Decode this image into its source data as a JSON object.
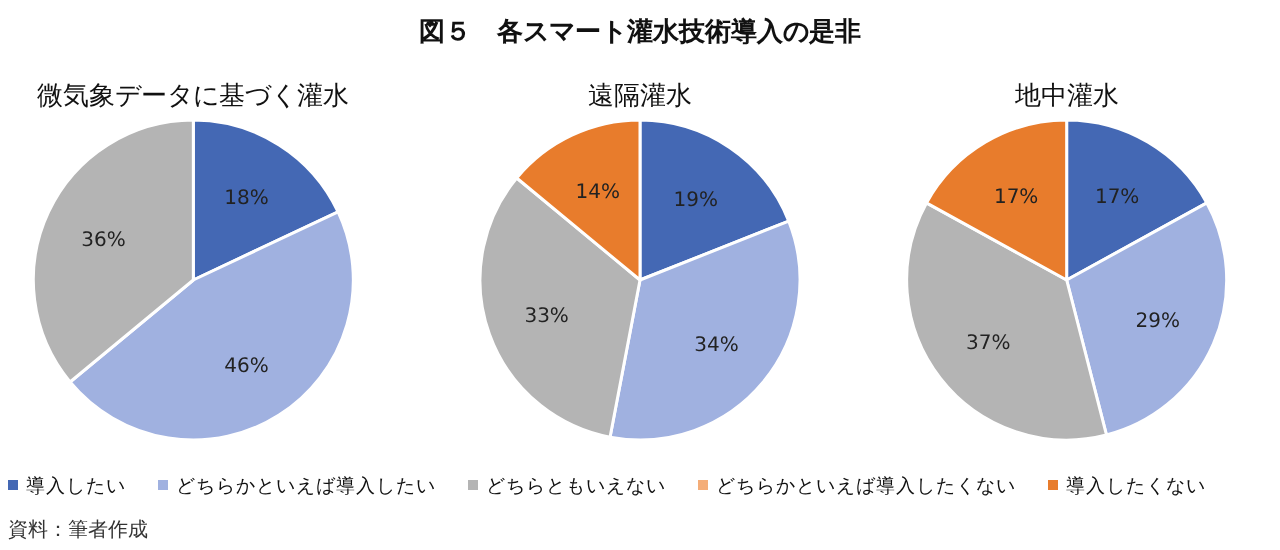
{
  "chart_data": [
    {
      "type": "pie",
      "title": "微気象データに基づく灌水",
      "annotations": [
        "図５　各スマート灌水技術導入の是非",
        "資料：筆者作成"
      ],
      "legend": "bottom",
      "categories": [
        "導入したい",
        "どちらかといえば導入したい",
        "どちらともいえない",
        "どちらかといえば導入したくない",
        "導入したくない"
      ],
      "values": [
        18,
        46,
        36,
        0,
        0
      ],
      "value_labels": [
        "18%",
        "46%",
        "36%",
        null,
        null
      ],
      "colors": [
        "#4468b4",
        "#a0b1e0",
        "#b4b4b4",
        "#f4ad78",
        "#e87c2c"
      ]
    },
    {
      "type": "pie",
      "title": "遠隔灌水",
      "categories": [
        null,
        null,
        null,
        null
      ],
      "values": [
        19,
        34,
        33,
        14
      ],
      "value_labels": [
        "19%",
        "34%",
        "33%",
        "14%"
      ],
      "colors": [
        "#4468b4",
        "#a0b1e0",
        "#b4b4b4",
        "#e87c2c"
      ]
    },
    {
      "type": "pie",
      "title": "地中灌水",
      "categories": [
        null,
        null,
        null,
        null
      ],
      "values": [
        17,
        29,
        37,
        17
      ],
      "value_labels": [
        "17%",
        "29%",
        "37%",
        "17%"
      ],
      "colors": [
        "#4468b4",
        "#a0b1e0",
        "#b4b4b4",
        "#e87c2c"
      ]
    }
  ]
}
